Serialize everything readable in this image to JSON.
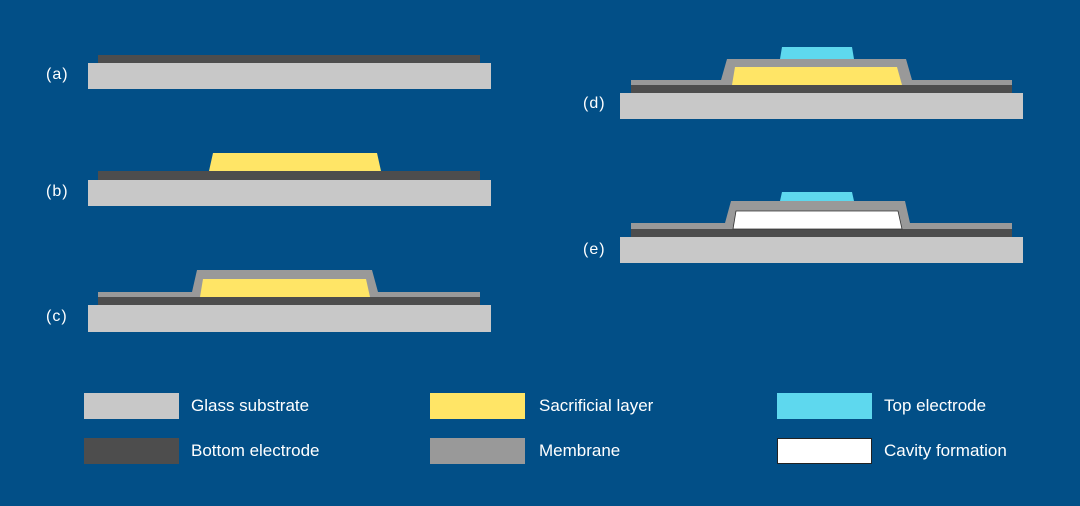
{
  "colors": {
    "background": "#024f87",
    "glass_substrate": "#c8c8c8",
    "bottom_electrode": "#4d4d4d",
    "membrane": "#999999",
    "sacrificial_layer": "#ffe566",
    "top_electrode": "#5ed8ee",
    "cavity": "#ffffff"
  },
  "steps": [
    {
      "label": "(a)"
    },
    {
      "label": "(b)"
    },
    {
      "label": "(c)"
    },
    {
      "label": "(d)"
    },
    {
      "label": "(e)"
    }
  ],
  "legend": [
    {
      "label": "Glass substrate",
      "color": "#c8c8c8"
    },
    {
      "label": "Sacrificial layer",
      "color": "#ffe566"
    },
    {
      "label": "Top electrode",
      "color": "#5ed8ee"
    },
    {
      "label": "Bottom electrode",
      "color": "#4d4d4d"
    },
    {
      "label": "Membrane",
      "color": "#999999"
    },
    {
      "label": "Cavity formation",
      "color": "#ffffff"
    }
  ]
}
